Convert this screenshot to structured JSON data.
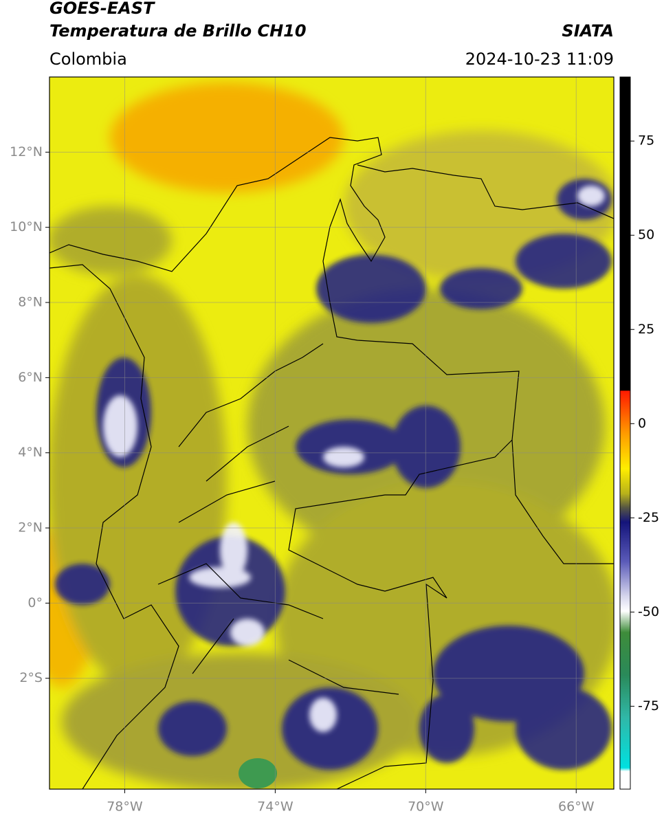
{
  "header": {
    "title": "GOES-EAST",
    "subtitle": "Temperatura de Brillo CH10",
    "source": "SIATA",
    "region": "Colombia",
    "datetime": "2024-10-23 11:09"
  },
  "map": {
    "lonlim": [
      -80,
      -65
    ],
    "latlim": [
      -4.95,
      14
    ],
    "lonticks": [
      {
        "value": -78,
        "label": "78°W"
      },
      {
        "value": -74,
        "label": "74°W"
      },
      {
        "value": -70,
        "label": "70°W"
      },
      {
        "value": -66,
        "label": "66°W"
      }
    ],
    "latticks": [
      {
        "value": 12,
        "label": "12°N"
      },
      {
        "value": 10,
        "label": "10°N"
      },
      {
        "value": 8,
        "label": "8°N"
      },
      {
        "value": 6,
        "label": "6°N"
      },
      {
        "value": 4,
        "label": "4°N"
      },
      {
        "value": 2,
        "label": "2°N"
      },
      {
        "value": 0,
        "label": "0°"
      },
      {
        "value": -2,
        "label": "2°S"
      }
    ],
    "grid": true
  },
  "colorbar": {
    "lim": [
      -97,
      92
    ],
    "ticks": [
      75,
      50,
      25,
      0,
      -25,
      -50,
      -75
    ]
  }
}
